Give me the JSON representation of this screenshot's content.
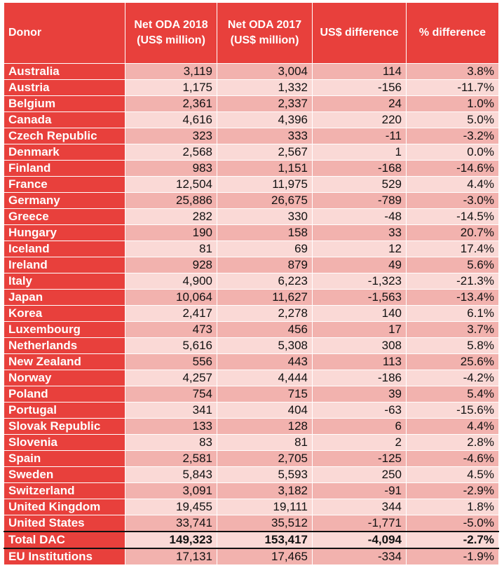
{
  "headers": [
    "Donor",
    "Net ODA 2018 (US$ million)",
    "Net ODA 2017 (US$ million)",
    "US$ difference",
    "% difference"
  ],
  "rows": [
    {
      "donor": "Australia",
      "oda2018": "3,119",
      "oda2017": "3,004",
      "diff": "114",
      "pct": "3.8%"
    },
    {
      "donor": "Austria",
      "oda2018": "1,175",
      "oda2017": "1,332",
      "diff": "-156",
      "pct": "-11.7%"
    },
    {
      "donor": "Belgium",
      "oda2018": "2,361",
      "oda2017": "2,337",
      "diff": "24",
      "pct": "1.0%"
    },
    {
      "donor": "Canada",
      "oda2018": "4,616",
      "oda2017": "4,396",
      "diff": "220",
      "pct": "5.0%"
    },
    {
      "donor": "Czech Republic",
      "oda2018": "323",
      "oda2017": "333",
      "diff": "-11",
      "pct": "-3.2%"
    },
    {
      "donor": "Denmark",
      "oda2018": "2,568",
      "oda2017": "2,567",
      "diff": "1",
      "pct": "0.0%"
    },
    {
      "donor": "Finland",
      "oda2018": "983",
      "oda2017": "1,151",
      "diff": "-168",
      "pct": "-14.6%"
    },
    {
      "donor": "France",
      "oda2018": "12,504",
      "oda2017": "11,975",
      "diff": "529",
      "pct": "4.4%"
    },
    {
      "donor": "Germany",
      "oda2018": "25,886",
      "oda2017": "26,675",
      "diff": "-789",
      "pct": "-3.0%"
    },
    {
      "donor": "Greece",
      "oda2018": "282",
      "oda2017": "330",
      "diff": "-48",
      "pct": "-14.5%"
    },
    {
      "donor": "Hungary",
      "oda2018": "190",
      "oda2017": "158",
      "diff": "33",
      "pct": "20.7%"
    },
    {
      "donor": "Iceland",
      "oda2018": "81",
      "oda2017": "69",
      "diff": "12",
      "pct": "17.4%"
    },
    {
      "donor": "Ireland",
      "oda2018": "928",
      "oda2017": "879",
      "diff": "49",
      "pct": "5.6%"
    },
    {
      "donor": "Italy",
      "oda2018": "4,900",
      "oda2017": "6,223",
      "diff": "-1,323",
      "pct": "-21.3%"
    },
    {
      "donor": "Japan",
      "oda2018": "10,064",
      "oda2017": "11,627",
      "diff": "-1,563",
      "pct": "-13.4%"
    },
    {
      "donor": "Korea",
      "oda2018": "2,417",
      "oda2017": "2,278",
      "diff": "140",
      "pct": "6.1%"
    },
    {
      "donor": "Luxembourg",
      "oda2018": "473",
      "oda2017": "456",
      "diff": "17",
      "pct": "3.7%"
    },
    {
      "donor": "Netherlands",
      "oda2018": "5,616",
      "oda2017": "5,308",
      "diff": "308",
      "pct": "5.8%"
    },
    {
      "donor": "New Zealand",
      "oda2018": "556",
      "oda2017": "443",
      "diff": "113",
      "pct": "25.6%"
    },
    {
      "donor": "Norway",
      "oda2018": "4,257",
      "oda2017": "4,444",
      "diff": "-186",
      "pct": "-4.2%"
    },
    {
      "donor": "Poland",
      "oda2018": "754",
      "oda2017": "715",
      "diff": "39",
      "pct": "5.4%"
    },
    {
      "donor": "Portugal",
      "oda2018": "341",
      "oda2017": "404",
      "diff": "-63",
      "pct": "-15.6%"
    },
    {
      "donor": "Slovak Republic",
      "oda2018": "133",
      "oda2017": "128",
      "diff": "6",
      "pct": "4.4%"
    },
    {
      "donor": "Slovenia",
      "oda2018": "83",
      "oda2017": "81",
      "diff": "2",
      "pct": "2.8%"
    },
    {
      "donor": "Spain",
      "oda2018": "2,581",
      "oda2017": "2,705",
      "diff": "-125",
      "pct": "-4.6%"
    },
    {
      "donor": "Sweden",
      "oda2018": "5,843",
      "oda2017": "5,593",
      "diff": "250",
      "pct": "4.5%"
    },
    {
      "donor": "Switzerland",
      "oda2018": "3,091",
      "oda2017": "3,182",
      "diff": "-91",
      "pct": "-2.9%"
    },
    {
      "donor": "United Kingdom",
      "oda2018": "19,455",
      "oda2017": "19,111",
      "diff": "344",
      "pct": "1.8%"
    },
    {
      "donor": "United States",
      "oda2018": "33,741",
      "oda2017": "35,512",
      "diff": "-1,771",
      "pct": "-5.0%"
    }
  ],
  "total": {
    "donor": "Total DAC",
    "oda2018": "149,323",
    "oda2017": "153,417",
    "diff": "-4,094",
    "pct": "-2.7%"
  },
  "eu": {
    "donor": "EU Institutions",
    "oda2018": "17,131",
    "oda2017": "17,465",
    "diff": "-334",
    "pct": "-1.9%"
  },
  "colors": {
    "header": "#e8403c",
    "row_dark": "#f2b2ae",
    "row_light": "#fad9d6"
  }
}
